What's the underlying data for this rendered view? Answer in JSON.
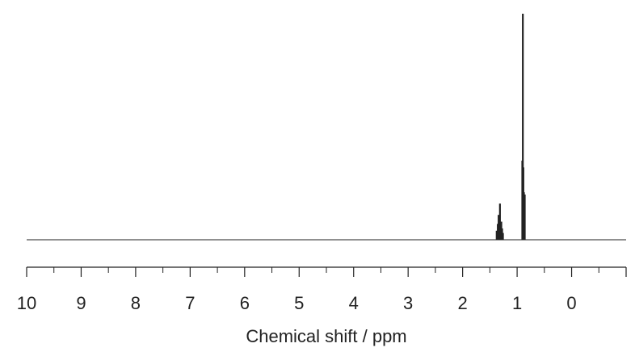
{
  "chart_data": {
    "type": "line",
    "title": "",
    "xlabel": "Chemical shift / ppm",
    "ylabel": "",
    "xlim": [
      10,
      -1
    ],
    "x_reversed": true,
    "major_ticks": [
      10,
      9,
      8,
      7,
      6,
      5,
      4,
      3,
      2,
      1,
      0
    ],
    "minor_tick_step": 0.5,
    "grid": false,
    "legend": "none",
    "y_units": "relative intensity",
    "ylim": [
      0,
      100
    ],
    "series": [
      {
        "peaks": [
          {
            "x": 1.375,
            "y": 4
          },
          {
            "x": 1.355,
            "y": 7
          },
          {
            "x": 1.34,
            "y": 11
          },
          {
            "x": 1.33,
            "y": 7
          },
          {
            "x": 1.315,
            "y": 16
          },
          {
            "x": 1.305,
            "y": 8
          },
          {
            "x": 1.29,
            "y": 8
          },
          {
            "x": 1.275,
            "y": 5
          },
          {
            "x": 1.26,
            "y": 3
          },
          {
            "x": 0.905,
            "y": 35
          },
          {
            "x": 0.895,
            "y": 100
          },
          {
            "x": 0.885,
            "y": 32
          },
          {
            "x": 0.875,
            "y": 21
          },
          {
            "x": 0.86,
            "y": 20
          }
        ]
      }
    ],
    "color": "#222222"
  }
}
